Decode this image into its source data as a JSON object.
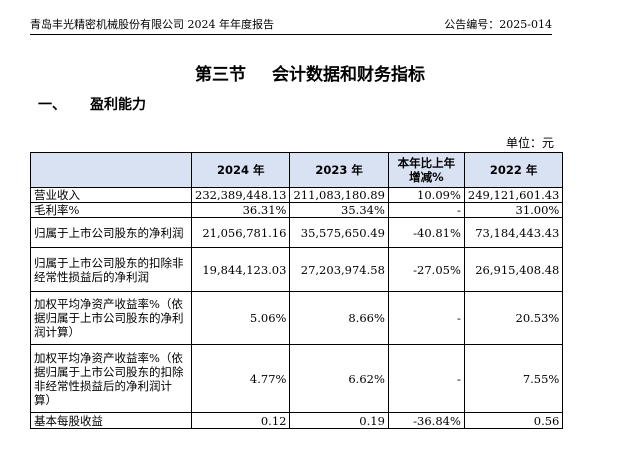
{
  "header": {
    "left": "青岛丰光精密机械股份有限公司 2024 年年度报告",
    "right": "公告编号：2025-014"
  },
  "section": {
    "title_part1": "第三节",
    "title_part2": "会计数据和财务指标"
  },
  "subsection": {
    "number": "一、",
    "title": "盈利能力"
  },
  "unit_label": "单位：元",
  "table": {
    "columns": [
      "",
      "2024 年",
      "2023 年",
      "本年比上年\n增减%",
      "2022 年"
    ],
    "rows": [
      {
        "label": "营业收入",
        "y2024": "232,389,448.13",
        "y2023": "211,083,180.89",
        "change": "10.09%",
        "y2022": "249,121,601.43"
      },
      {
        "label": "毛利率%",
        "y2024": "36.31%",
        "y2023": "35.34%",
        "change": "-",
        "y2022": "31.00%"
      },
      {
        "label": "归属于上市公司股东的净利润",
        "y2024": "21,056,781.16",
        "y2023": "35,575,650.49",
        "change": "-40.81%",
        "y2022": "73,184,443.43"
      },
      {
        "label": "归属于上市公司股东的扣除非经常性损益后的净利润",
        "y2024": "19,844,123.03",
        "y2023": "27,203,974.58",
        "change": "-27.05%",
        "y2022": "26,915,408.48"
      },
      {
        "label": "加权平均净资产收益率%（依据归属于上市公司股东的净利润计算）",
        "y2024": "5.06%",
        "y2023": "8.66%",
        "change": "-",
        "y2022": "20.53%"
      },
      {
        "label": "加权平均净资产收益率%（依据归属于上市公司股东的扣除非经常性损益后的净利润计算）",
        "y2024": "4.77%",
        "y2023": "6.62%",
        "change": "-",
        "y2022": "7.55%"
      },
      {
        "label": "基本每股收益",
        "y2024": "0.12",
        "y2023": "0.19",
        "change": "-36.84%",
        "y2022": "0.56"
      }
    ]
  }
}
